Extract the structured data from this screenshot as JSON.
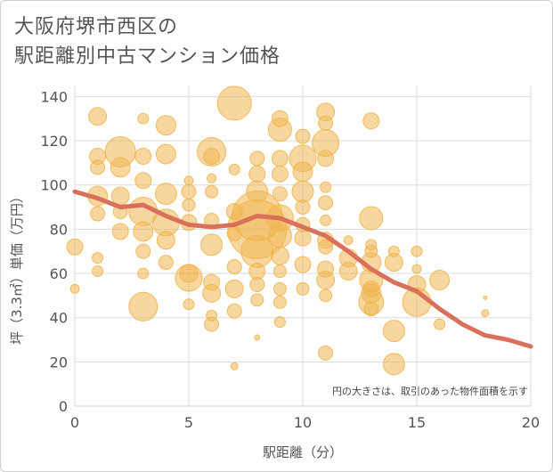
{
  "title_line1": "大阪府堺市西区の",
  "title_line2": "駅距離別中古マンション価格",
  "chart_data": {
    "type": "scatter",
    "xlabel": "駅距離（分）",
    "ylabel": "坪（3.3㎡）単価（万円）",
    "xlim": [
      0,
      20
    ],
    "ylim": [
      0,
      145
    ],
    "xticks": [
      0,
      5,
      10,
      15,
      20
    ],
    "yticks": [
      0,
      20,
      40,
      60,
      80,
      100,
      120,
      140
    ],
    "grid": true,
    "note": "円の大きさは、取引のあった物件面積を示す",
    "bubble_color": "#f0b650",
    "line_color": "#d9705a",
    "points": [
      [
        0,
        72,
        9
      ],
      [
        0,
        53,
        5
      ],
      [
        1,
        131,
        10
      ],
      [
        1,
        113,
        9
      ],
      [
        1,
        108,
        8
      ],
      [
        1,
        95,
        11
      ],
      [
        1,
        87,
        8
      ],
      [
        1,
        67,
        6
      ],
      [
        1,
        61,
        6
      ],
      [
        2,
        115,
        17
      ],
      [
        2,
        108,
        11
      ],
      [
        2,
        95,
        10
      ],
      [
        2,
        88,
        8
      ],
      [
        2,
        79,
        9
      ],
      [
        3,
        130,
        6
      ],
      [
        3,
        113,
        9
      ],
      [
        3,
        102,
        9
      ],
      [
        3,
        88,
        16
      ],
      [
        3,
        79,
        11
      ],
      [
        3,
        70,
        8
      ],
      [
        3,
        60,
        6
      ],
      [
        3,
        45,
        16
      ],
      [
        4,
        127,
        11
      ],
      [
        4,
        114,
        11
      ],
      [
        4,
        96,
        12
      ],
      [
        4,
        83,
        15
      ],
      [
        4,
        75,
        10
      ],
      [
        4,
        65,
        8
      ],
      [
        5,
        102,
        5
      ],
      [
        5,
        97,
        8
      ],
      [
        5,
        91,
        7
      ],
      [
        5,
        83,
        9
      ],
      [
        5,
        60,
        10
      ],
      [
        5,
        58,
        15
      ],
      [
        5,
        46,
        6
      ],
      [
        6,
        115,
        16
      ],
      [
        6,
        113,
        9
      ],
      [
        6,
        103,
        5
      ],
      [
        6,
        97,
        7
      ],
      [
        6,
        84,
        8
      ],
      [
        6,
        73,
        12
      ],
      [
        6,
        56,
        9
      ],
      [
        6,
        51,
        10
      ],
      [
        6,
        41,
        6
      ],
      [
        6,
        37,
        8
      ],
      [
        7,
        137,
        19
      ],
      [
        7,
        107,
        6
      ],
      [
        7,
        88,
        9
      ],
      [
        7,
        78,
        8
      ],
      [
        7,
        63,
        8
      ],
      [
        7,
        53,
        10
      ],
      [
        7,
        43,
        8
      ],
      [
        7,
        18,
        4
      ],
      [
        8,
        112,
        8
      ],
      [
        8,
        105,
        9
      ],
      [
        8,
        97,
        12
      ],
      [
        8,
        86,
        28
      ],
      [
        8,
        80,
        33
      ],
      [
        8,
        70,
        18
      ],
      [
        8,
        61,
        9
      ],
      [
        8,
        55,
        8
      ],
      [
        8,
        48,
        7
      ],
      [
        8,
        31,
        3
      ],
      [
        9,
        130,
        9
      ],
      [
        9,
        125,
        13
      ],
      [
        9,
        112,
        9
      ],
      [
        9,
        105,
        9
      ],
      [
        9,
        96,
        8
      ],
      [
        9,
        85,
        15
      ],
      [
        9,
        77,
        13
      ],
      [
        9,
        68,
        10
      ],
      [
        9,
        61,
        7
      ],
      [
        9,
        53,
        7
      ],
      [
        9,
        47,
        7
      ],
      [
        9,
        38,
        6
      ],
      [
        10,
        122,
        8
      ],
      [
        10,
        112,
        15
      ],
      [
        10,
        106,
        11
      ],
      [
        10,
        97,
        12
      ],
      [
        10,
        90,
        8
      ],
      [
        10,
        82,
        8
      ],
      [
        10,
        76,
        9
      ],
      [
        10,
        64,
        9
      ],
      [
        10,
        53,
        7
      ],
      [
        11,
        133,
        10
      ],
      [
        11,
        128,
        8
      ],
      [
        11,
        119,
        15
      ],
      [
        11,
        112,
        9
      ],
      [
        11,
        99,
        6
      ],
      [
        11,
        92,
        8
      ],
      [
        11,
        84,
        6
      ],
      [
        11,
        75,
        9
      ],
      [
        11,
        72,
        8
      ],
      [
        11,
        62,
        9
      ],
      [
        11,
        57,
        10
      ],
      [
        11,
        50,
        7
      ],
      [
        11,
        24,
        8
      ],
      [
        12,
        75,
        5
      ],
      [
        12,
        67,
        10
      ],
      [
        12,
        61,
        10
      ],
      [
        13,
        129,
        9
      ],
      [
        13,
        85,
        13
      ],
      [
        13,
        73,
        6
      ],
      [
        13,
        70,
        7
      ],
      [
        13,
        65,
        11
      ],
      [
        13,
        57,
        13
      ],
      [
        13,
        53,
        9
      ],
      [
        13,
        51,
        11
      ],
      [
        13,
        47,
        14
      ],
      [
        13,
        44,
        8
      ],
      [
        14,
        70,
        6
      ],
      [
        14,
        65,
        10
      ],
      [
        14,
        34,
        12
      ],
      [
        14,
        19,
        12
      ],
      [
        15,
        70,
        6
      ],
      [
        15,
        62,
        5
      ],
      [
        15,
        55,
        10
      ],
      [
        15,
        47,
        16
      ],
      [
        16,
        57,
        11
      ],
      [
        16,
        37,
        6
      ],
      [
        18,
        49,
        2
      ],
      [
        18,
        42,
        4
      ]
    ],
    "trend": [
      [
        0,
        97
      ],
      [
        1,
        94
      ],
      [
        2,
        90
      ],
      [
        3,
        91
      ],
      [
        4,
        86
      ],
      [
        5,
        82
      ],
      [
        6,
        81
      ],
      [
        7,
        82
      ],
      [
        8,
        86
      ],
      [
        9,
        85
      ],
      [
        10,
        81
      ],
      [
        11,
        77
      ],
      [
        12,
        70
      ],
      [
        13,
        62
      ],
      [
        14,
        56
      ],
      [
        15,
        52
      ],
      [
        16,
        44
      ],
      [
        17,
        37
      ],
      [
        18,
        32
      ],
      [
        19,
        30
      ],
      [
        20,
        27
      ]
    ]
  }
}
